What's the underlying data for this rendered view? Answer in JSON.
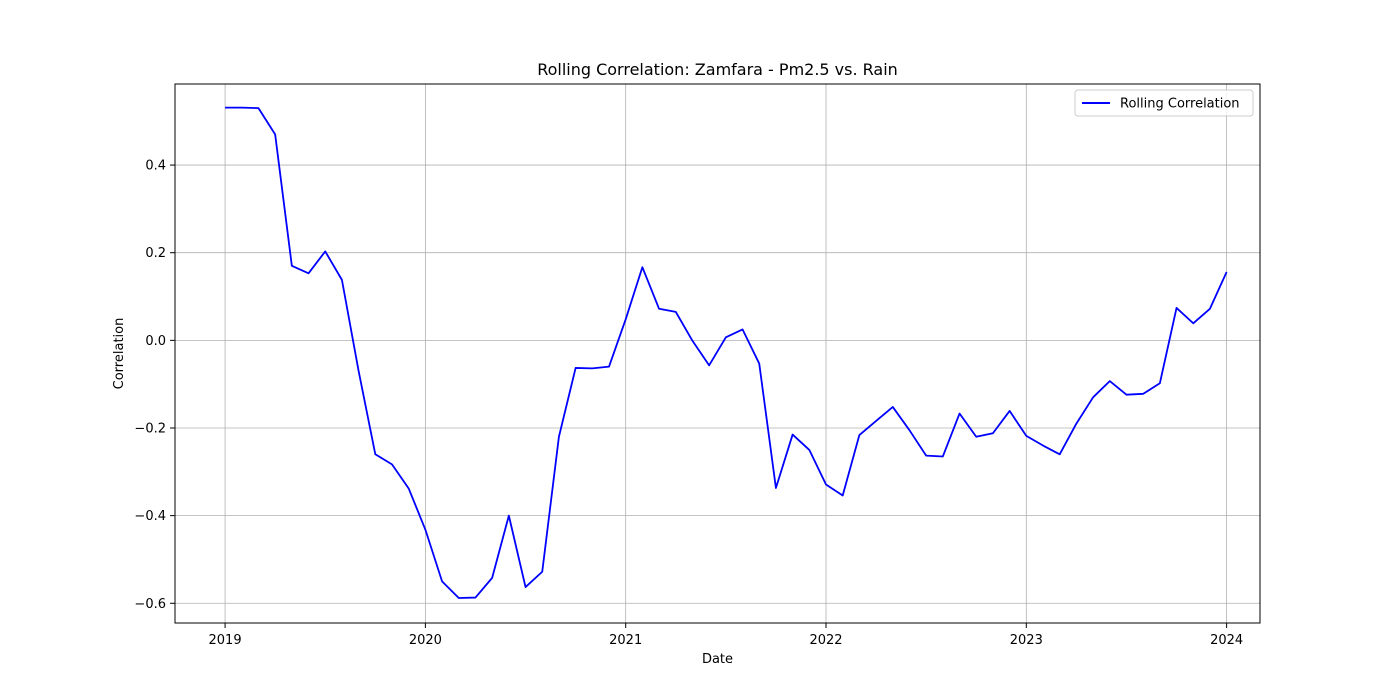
{
  "chart_data": {
    "type": "line",
    "title": "Rolling Correlation: Zamfara - Pm2.5 vs. Rain",
    "xlabel": "Date",
    "ylabel": "Correlation",
    "xlim": [
      "2018-10-01",
      "2024-03-01"
    ],
    "ylim": [
      -0.645,
      0.585
    ],
    "x_ticks": [
      "2019",
      "2020",
      "2021",
      "2022",
      "2023",
      "2024"
    ],
    "y_ticks": [
      -0.6,
      -0.4,
      -0.2,
      0.0,
      0.2,
      0.4
    ],
    "y_tick_labels": [
      "−0.6",
      "−0.4",
      "−0.2",
      "0.0",
      "0.2",
      "0.4"
    ],
    "grid": true,
    "legend_position": "top-right",
    "series": [
      {
        "name": "Rolling Correlation",
        "color": "#0000ff",
        "x": [
          "2019-01",
          "2019-02",
          "2019-03",
          "2019-04",
          "2019-05",
          "2019-06",
          "2019-07",
          "2019-08",
          "2019-09",
          "2019-10",
          "2019-11",
          "2019-12",
          "2020-01",
          "2020-02",
          "2020-03",
          "2020-04",
          "2020-05",
          "2020-06",
          "2020-07",
          "2020-08",
          "2020-09",
          "2020-10",
          "2020-11",
          "2020-12",
          "2021-01",
          "2021-02",
          "2021-03",
          "2021-04",
          "2021-05",
          "2021-06",
          "2021-07",
          "2021-08",
          "2021-09",
          "2021-10",
          "2021-11",
          "2021-12",
          "2022-01",
          "2022-02",
          "2022-03",
          "2022-04",
          "2022-05",
          "2022-06",
          "2022-07",
          "2022-08",
          "2022-09",
          "2022-10",
          "2022-11",
          "2022-12",
          "2023-01",
          "2023-02",
          "2023-03",
          "2023-04",
          "2023-05",
          "2023-06",
          "2023-07",
          "2023-08",
          "2023-09",
          "2023-10",
          "2023-11",
          "2023-12",
          "2024-01"
        ],
        "values": [
          0.531,
          0.531,
          0.53,
          0.47,
          0.17,
          0.153,
          0.203,
          0.138,
          -0.07,
          -0.26,
          -0.283,
          -0.338,
          -0.432,
          -0.55,
          -0.588,
          -0.587,
          -0.542,
          -0.4,
          -0.563,
          -0.528,
          -0.22,
          -0.063,
          -0.064,
          -0.06,
          0.048,
          0.167,
          0.072,
          0.065,
          -0.001,
          -0.057,
          0.007,
          0.025,
          -0.053,
          -0.337,
          -0.215,
          -0.25,
          -0.329,
          -0.354,
          -0.216,
          -0.184,
          -0.152,
          -0.205,
          -0.263,
          -0.265,
          -0.167,
          -0.22,
          -0.212,
          -0.161,
          -0.218,
          -0.24,
          -0.26,
          -0.19,
          -0.13,
          -0.093,
          -0.124,
          -0.122,
          -0.098,
          0.074,
          0.039,
          0.072,
          0.156
        ]
      }
    ]
  }
}
